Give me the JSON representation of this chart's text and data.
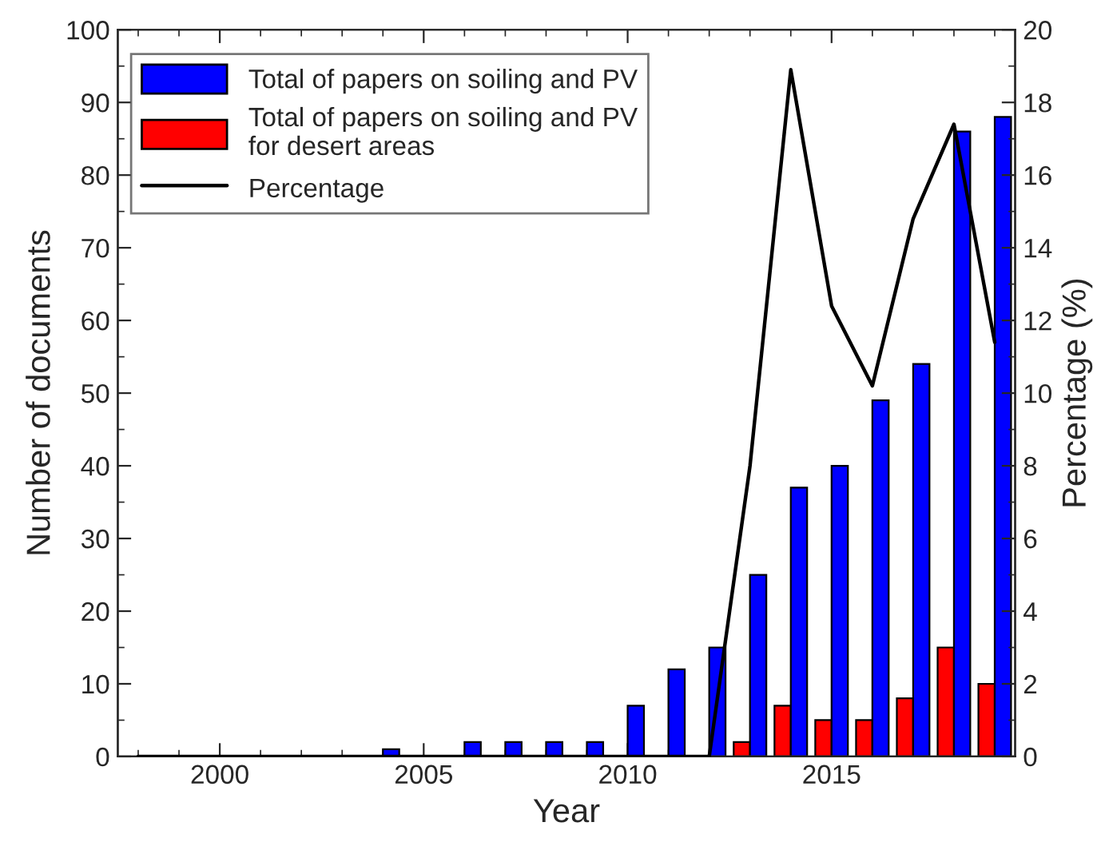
{
  "chart_data": {
    "type": "bar",
    "xlabel": "Year",
    "ylabel": "Number of documents",
    "y2label": "Percentage (%)",
    "x": [
      1998,
      1999,
      2000,
      2001,
      2002,
      2003,
      2004,
      2005,
      2006,
      2007,
      2008,
      2009,
      2010,
      2011,
      2012,
      2013,
      2014,
      2015,
      2016,
      2017,
      2018,
      2019
    ],
    "series": [
      {
        "name": "Total of papers on soiling and PV\nfor desert areas",
        "color": "#ff0000",
        "values": [
          null,
          null,
          null,
          null,
          null,
          null,
          null,
          null,
          null,
          null,
          null,
          null,
          null,
          null,
          null,
          2,
          7,
          5,
          5,
          8,
          15,
          10
        ]
      },
      {
        "name": "Total of papers on soiling and PV",
        "color": "#0000ff",
        "values": [
          null,
          null,
          null,
          null,
          null,
          null,
          1,
          null,
          2,
          2,
          2,
          2,
          7,
          12,
          15,
          25,
          37,
          40,
          49,
          54,
          86,
          88
        ]
      },
      {
        "name": "Percentage",
        "type": "line",
        "axis": "y2",
        "color": "#000000",
        "values": [
          0,
          0,
          0,
          0,
          0,
          0,
          0,
          0,
          0,
          0,
          0,
          0,
          0,
          0,
          0,
          8,
          18.9,
          12.4,
          10.2,
          14.8,
          17.4,
          11.4
        ]
      }
    ],
    "xlim": [
      1997.5,
      2019.5
    ],
    "xticks": [
      2000,
      2005,
      2010,
      2015
    ],
    "ylim": [
      0,
      100
    ],
    "yticks": [
      0,
      10,
      20,
      30,
      40,
      50,
      60,
      70,
      80,
      90,
      100
    ],
    "y2lim": [
      0,
      20
    ],
    "y2ticks": [
      0,
      2,
      4,
      6,
      8,
      10,
      12,
      14,
      16,
      18,
      20
    ],
    "legend": "top left",
    "grid": false,
    "line_style": "solid",
    "marker": "none"
  }
}
